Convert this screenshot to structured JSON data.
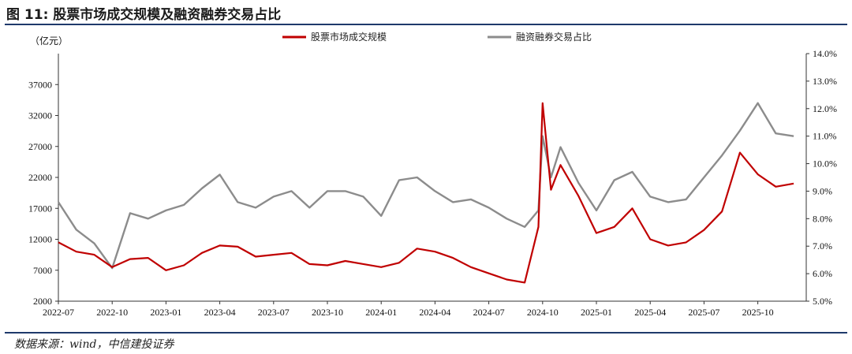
{
  "figure_title": "图 11: 股票市场成交规模及融资融券交易占比",
  "source": "数据来源：wind，中信建投证券",
  "colors": {
    "turnover": "#c00000",
    "margin_share": "#8c8c8c",
    "rule": "#1f3a6b"
  },
  "chart_data": {
    "type": "line",
    "title": "",
    "left_axis": {
      "unit_label": "（亿元）",
      "ylim": [
        2000,
        42000
      ],
      "ticks": [
        2000,
        7000,
        12000,
        17000,
        22000,
        27000,
        32000,
        37000
      ]
    },
    "right_axis": {
      "ylim": [
        5.0,
        14.0
      ],
      "ticks": [
        "5.0%",
        "6.0%",
        "7.0%",
        "8.0%",
        "9.0%",
        "10.0%",
        "11.0%",
        "12.0%",
        "13.0%",
        "14.0%"
      ],
      "tick_values": [
        5,
        6,
        7,
        8,
        9,
        10,
        11,
        12,
        13,
        14
      ]
    },
    "x_ticks": [
      "2022-07",
      "2022-10",
      "2023-01",
      "2023-04",
      "2023-07",
      "2023-10",
      "2024-01",
      "2024-04",
      "2024-07",
      "2024-10",
      "2025-01",
      "2025-04",
      "2025-07",
      "2025-10"
    ],
    "x_range": [
      "2022-07",
      "2025-12"
    ],
    "legend_position": "top",
    "series": [
      {
        "name": "股票市场成交规模",
        "axis": "left",
        "x": [
          "2022-07",
          "2022-08",
          "2022-09",
          "2022-10",
          "2022-11",
          "2022-12",
          "2023-01",
          "2023-02",
          "2023-03",
          "2023-04",
          "2023-05",
          "2023-06",
          "2023-07",
          "2023-08",
          "2023-09",
          "2023-10",
          "2023-11",
          "2023-12",
          "2024-01",
          "2024-02",
          "2024-03",
          "2024-04",
          "2024-05",
          "2024-06",
          "2024-07",
          "2024-08",
          "2024-09",
          "2024-09-24",
          "2024-10",
          "2024-10-15",
          "2024-11",
          "2024-12",
          "2025-01",
          "2025-02",
          "2025-03",
          "2025-04",
          "2025-05",
          "2025-06",
          "2025-07",
          "2025-08",
          "2025-09",
          "2025-10",
          "2025-11",
          "2025-12"
        ],
        "values": [
          11500,
          10000,
          9500,
          7500,
          8800,
          9000,
          7000,
          7800,
          9800,
          11000,
          10800,
          9200,
          9500,
          9800,
          8000,
          7800,
          8500,
          8000,
          7500,
          8200,
          10500,
          10000,
          9000,
          7500,
          6500,
          5500,
          5000,
          14000,
          34000,
          20000,
          24000,
          19000,
          13000,
          14000,
          17000,
          12000,
          11000,
          11500,
          13500,
          16500,
          26000,
          22500,
          20500,
          21000
        ]
      },
      {
        "name": "融资融券交易占比",
        "axis": "right",
        "x": [
          "2022-07",
          "2022-08",
          "2022-09",
          "2022-10",
          "2022-11",
          "2022-12",
          "2023-01",
          "2023-02",
          "2023-03",
          "2023-04",
          "2023-05",
          "2023-06",
          "2023-07",
          "2023-08",
          "2023-09",
          "2023-10",
          "2023-11",
          "2023-12",
          "2024-01",
          "2024-02",
          "2024-03",
          "2024-04",
          "2024-05",
          "2024-06",
          "2024-07",
          "2024-08",
          "2024-09",
          "2024-09-24",
          "2024-10",
          "2024-10-15",
          "2024-11",
          "2024-12",
          "2025-01",
          "2025-02",
          "2025-03",
          "2025-04",
          "2025-05",
          "2025-06",
          "2025-07",
          "2025-08",
          "2025-09",
          "2025-10",
          "2025-11",
          "2025-12"
        ],
        "values": [
          8.6,
          7.6,
          7.1,
          6.2,
          8.2,
          8.0,
          8.3,
          8.5,
          9.1,
          9.6,
          8.6,
          8.4,
          8.8,
          9.0,
          8.4,
          9.0,
          9.0,
          8.8,
          8.1,
          9.4,
          9.5,
          9.0,
          8.6,
          8.7,
          8.4,
          8.0,
          7.7,
          8.3,
          11.0,
          9.5,
          10.6,
          9.3,
          8.3,
          9.4,
          9.7,
          8.8,
          8.6,
          8.7,
          9.5,
          10.3,
          11.2,
          12.2,
          11.1,
          11.0
        ]
      }
    ]
  }
}
